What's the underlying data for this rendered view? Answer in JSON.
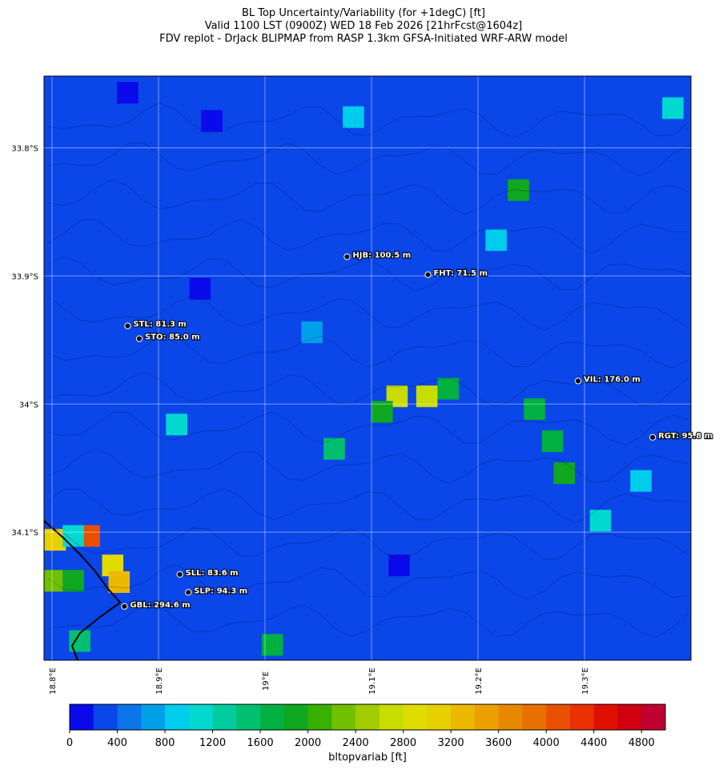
{
  "title": [
    "BL Top Uncertainty/Variability (for +1degC) [ft]",
    "Valid 1100 LST (0900Z) WED 18 Feb 2026 [21hrFcst@1604z]",
    "FDV replot - DrJack BLIPMAP from RASP 1.3km GFSA-Initiated WRF-ARW model"
  ],
  "map": {
    "xlim": [
      18.7925,
      19.4
    ],
    "ylim": [
      -33.744,
      -34.2
    ],
    "xticks": [
      {
        "value": 18.8,
        "label": "18.8°E"
      },
      {
        "value": 18.9,
        "label": "18.9°E"
      },
      {
        "value": 19.0,
        "label": "19°E"
      },
      {
        "value": 19.1,
        "label": "19.1°E"
      },
      {
        "value": 19.2,
        "label": "19.2°E"
      },
      {
        "value": 19.3,
        "label": "19.3°E"
      }
    ],
    "yticks": [
      {
        "value": -33.8,
        "label": "33.8°S"
      },
      {
        "value": -33.9,
        "label": "33.9°S"
      },
      {
        "value": -34.0,
        "label": "34°S"
      },
      {
        "value": -34.1,
        "label": "34.1°S"
      }
    ],
    "background_value": 300,
    "cells": [
      {
        "lon": 18.803,
        "lat": -34.106,
        "value": 3000
      },
      {
        "lon": 18.835,
        "lat": -34.103,
        "value": 4000
      },
      {
        "lon": 18.82,
        "lat": -34.103,
        "value": 1100
      },
      {
        "lon": 18.857,
        "lat": -34.126,
        "value": 2800
      },
      {
        "lon": 18.863,
        "lat": -34.139,
        "value": 3200
      },
      {
        "lon": 18.82,
        "lat": -34.138,
        "value": 1800
      },
      {
        "lon": 18.8,
        "lat": -34.138,
        "value": 2200
      },
      {
        "lon": 19.124,
        "lat": -33.994,
        "value": 2600
      },
      {
        "lon": 19.152,
        "lat": -33.994,
        "value": 2600
      },
      {
        "lon": 19.172,
        "lat": -33.988,
        "value": 1700
      },
      {
        "lon": 19.11,
        "lat": -34.006,
        "value": 1800
      },
      {
        "lon": 19.281,
        "lat": -34.054,
        "value": 1800
      },
      {
        "lon": 19.27,
        "lat": -34.029,
        "value": 1700
      },
      {
        "lon": 19.238,
        "lat": -33.833,
        "value": 1800
      },
      {
        "lon": 19.253,
        "lat": -34.004,
        "value": 1600
      },
      {
        "lon": 19.065,
        "lat": -34.035,
        "value": 1400
      },
      {
        "lon": 19.007,
        "lat": -34.188,
        "value": 1600
      },
      {
        "lon": 19.383,
        "lat": -33.769,
        "value": 1000
      },
      {
        "lon": 19.083,
        "lat": -33.776,
        "value": 800
      },
      {
        "lon": 18.871,
        "lat": -33.757,
        "value": 100
      },
      {
        "lon": 18.939,
        "lat": -33.91,
        "value": 100
      },
      {
        "lon": 18.95,
        "lat": -33.779,
        "value": 100
      },
      {
        "lon": 19.217,
        "lat": -33.872,
        "value": 900
      },
      {
        "lon": 19.315,
        "lat": -34.091,
        "value": 1000
      },
      {
        "lon": 19.353,
        "lat": -34.06,
        "value": 900
      },
      {
        "lon": 19.126,
        "lat": -34.126,
        "value": 100
      },
      {
        "lon": 19.044,
        "lat": -33.944,
        "value": 700
      },
      {
        "lon": 18.917,
        "lat": -34.016,
        "value": 1000
      },
      {
        "lon": 18.826,
        "lat": -34.185,
        "value": 1400
      }
    ],
    "stations": [
      {
        "label": "HJB: 100.5 m",
        "lon": 19.077,
        "lat": -33.885
      },
      {
        "label": "FHT: 71.5 m",
        "lon": 19.153,
        "lat": -33.899
      },
      {
        "label": "STL: 81.3 m",
        "lon": 18.871,
        "lat": -33.939
      },
      {
        "label": "STO: 85.0 m",
        "lon": 18.882,
        "lat": -33.949
      },
      {
        "label": "VIL: 176.0 m",
        "lon": 19.294,
        "lat": -33.982
      },
      {
        "label": "RGT: 95.8 m",
        "lon": 19.364,
        "lat": -34.026
      },
      {
        "label": "SLL: 83.6 m",
        "lon": 18.92,
        "lat": -34.133
      },
      {
        "label": "SLP: 94.3 m",
        "lon": 18.928,
        "lat": -34.147
      },
      {
        "label": "GBL: 294.6 m",
        "lon": 18.868,
        "lat": -34.158
      }
    ]
  },
  "colorbar": {
    "lim": [
      0,
      5000
    ],
    "label": "bltopvariab [ft]",
    "colors": [
      "#0a0aeb",
      "#0a46e8",
      "#0a74e8",
      "#00a0e8",
      "#00ccec",
      "#00d8d0",
      "#00cca0",
      "#00c070",
      "#00b040",
      "#10a820",
      "#38b000",
      "#70c000",
      "#a0cc00",
      "#c8dc00",
      "#e0dc00",
      "#e8d000",
      "#ecb800",
      "#eca000",
      "#e88800",
      "#e87000",
      "#e85000",
      "#e83000",
      "#e01000",
      "#d00010",
      "#c00030"
    ],
    "ticks": [
      0,
      400,
      800,
      1200,
      1600,
      2000,
      2400,
      2800,
      3200,
      3600,
      4000,
      4400,
      4800
    ]
  }
}
